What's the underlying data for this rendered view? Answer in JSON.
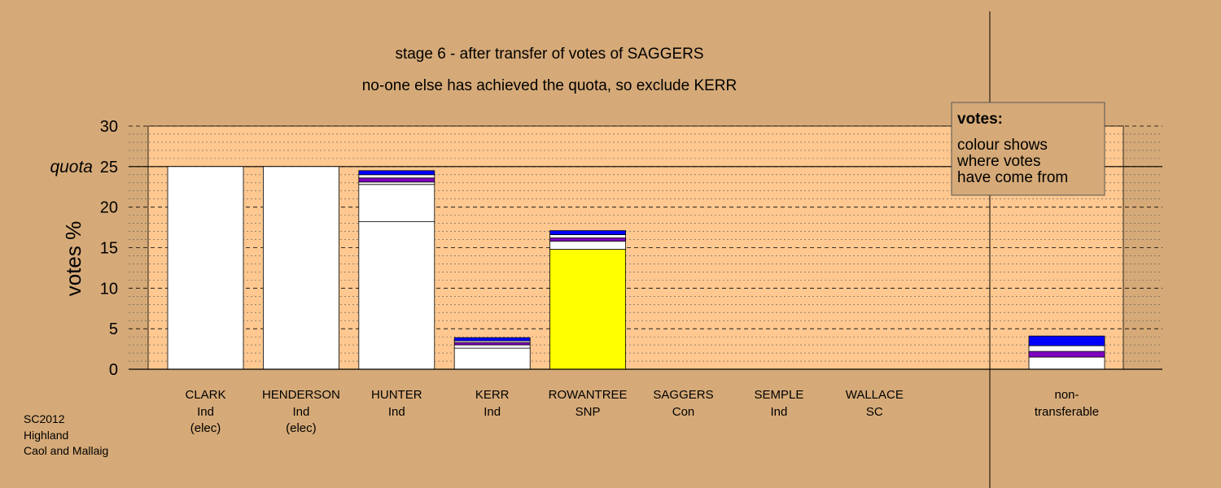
{
  "colors": {
    "background": "#d6aa78",
    "plot_area": "#fec890",
    "white": "#ffffff",
    "snp_yellow": "#ffff00",
    "blue": "#0000ff",
    "purple": "#8000c0"
  },
  "chart_data": {
    "type": "bar",
    "stacked": true,
    "title": "stage 6 - after transfer of votes of SAGGERS",
    "subtitle": "no-one else has achieved the quota, so exclude KERR",
    "ylabel": "votes %",
    "ylim": [
      0,
      30
    ],
    "yticks": [
      0,
      5,
      10,
      15,
      20,
      25,
      30
    ],
    "ytick_labels": [
      "0",
      "5",
      "10",
      "15",
      "20",
      "25",
      "30"
    ],
    "quota_label": "quota",
    "quota_value": 25,
    "grid": true,
    "legend": {
      "placement": "top-right",
      "heading": "votes:",
      "lines": [
        "colour shows",
        "where votes",
        "have come from"
      ]
    },
    "candidates": [
      {
        "name": "CLARK",
        "party": "Ind",
        "status": "(elec)",
        "segments": [
          {
            "value": 25.0,
            "color": "#ffffff"
          }
        ]
      },
      {
        "name": "HENDERSON",
        "party": "Ind",
        "status": "(elec)",
        "segments": [
          {
            "value": 25.0,
            "color": "#ffffff"
          }
        ]
      },
      {
        "name": "HUNTER",
        "party": "Ind",
        "status": "",
        "segments": [
          {
            "value": 18.2,
            "color": "#ffffff"
          },
          {
            "value": 4.6,
            "color": "#ffffff"
          },
          {
            "value": 0.3,
            "color": "#ffffff"
          },
          {
            "value": 0.5,
            "color": "#8000c0"
          },
          {
            "value": 0.4,
            "color": "#ffffff"
          },
          {
            "value": 0.5,
            "color": "#0000ff"
          }
        ]
      },
      {
        "name": "KERR",
        "party": "Ind",
        "status": "",
        "segments": [
          {
            "value": 2.6,
            "color": "#ffffff"
          },
          {
            "value": 0.4,
            "color": "#ffffff"
          },
          {
            "value": 0.3,
            "color": "#8000c0"
          },
          {
            "value": 0.2,
            "color": "#ffffff"
          },
          {
            "value": 0.4,
            "color": "#0000ff"
          }
        ]
      },
      {
        "name": "ROWANTREE",
        "party": "SNP",
        "status": "",
        "segments": [
          {
            "value": 14.8,
            "color": "#ffff00"
          },
          {
            "value": 1.0,
            "color": "#ffffff"
          },
          {
            "value": 0.4,
            "color": "#8000c0"
          },
          {
            "value": 0.4,
            "color": "#ffffff"
          },
          {
            "value": 0.5,
            "color": "#0000ff"
          }
        ]
      },
      {
        "name": "SAGGERS",
        "party": "Con",
        "status": "",
        "segments": []
      },
      {
        "name": "SEMPLE",
        "party": "Ind",
        "status": "",
        "segments": []
      },
      {
        "name": "WALLACE",
        "party": "SC",
        "status": "",
        "segments": []
      }
    ],
    "non_transferable": {
      "label_line1": "non-",
      "label_line2": "transferable",
      "segments": [
        {
          "value": 1.5,
          "color": "#ffffff"
        },
        {
          "value": 0.7,
          "color": "#8000c0"
        },
        {
          "value": 0.7,
          "color": "#ffffff"
        },
        {
          "value": 1.2,
          "color": "#0000ff"
        }
      ]
    }
  },
  "footer": {
    "line1": "SC2012",
    "line2": "Highland",
    "line3": "Caol and Mallaig"
  }
}
